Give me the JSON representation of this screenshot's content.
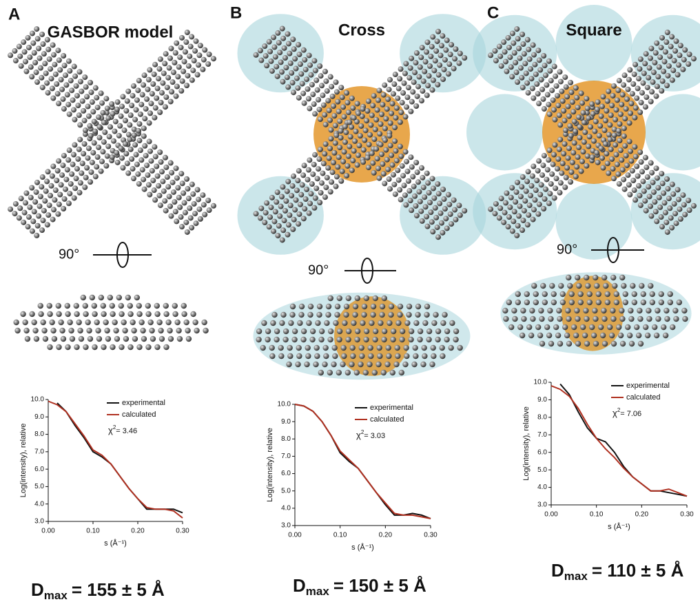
{
  "panels": [
    {
      "letter": "A",
      "title": "GASBOR model",
      "rotation": "90°",
      "dmax": {
        "symbol": "D",
        "subscript": "max",
        "text": "=   155 ± 5 Å"
      }
    },
    {
      "letter": "B",
      "title": "Cross",
      "rotation": "90°",
      "dmax": {
        "symbol": "D",
        "subscript": "max",
        "text": "= 150 ± 5 Å"
      }
    },
    {
      "letter": "C",
      "title": "Square",
      "rotation": "90°",
      "dmax": {
        "symbol": "D",
        "subscript": "max",
        "text": "= 110 ± 5 Å"
      }
    }
  ],
  "chart_data": [
    {
      "type": "line",
      "x_label": "s (Å⁻¹)",
      "y_label": "Log(intensity), relative",
      "x": [
        0,
        0.02,
        0.04,
        0.06,
        0.08,
        0.1,
        0.12,
        0.14,
        0.16,
        0.18,
        0.2,
        0.22,
        0.24,
        0.26,
        0.28,
        0.3
      ],
      "series": [
        {
          "name": "experimental",
          "color": "#111111",
          "values": [
            null,
            9.8,
            9.3,
            8.5,
            7.8,
            7.0,
            6.7,
            6.3,
            5.6,
            4.9,
            4.3,
            3.7,
            3.7,
            3.7,
            3.7,
            3.5
          ]
        },
        {
          "name": "calculated",
          "color": "#b03020",
          "values": [
            9.9,
            9.7,
            9.3,
            8.6,
            7.9,
            7.1,
            6.8,
            6.3,
            5.6,
            4.9,
            4.3,
            3.8,
            3.7,
            3.7,
            3.6,
            3.2
          ]
        }
      ],
      "annotation": {
        "symbol": "χ",
        "superscript": "2",
        "text": "= 3.46"
      },
      "legend": "upper right",
      "xlim": [
        0,
        0.3
      ],
      "ylim": [
        3,
        10
      ],
      "xticks": [
        {
          "value": 0,
          "label": "0.00"
        },
        {
          "value": 0.1,
          "label": "0.10"
        },
        {
          "value": 0.2,
          "label": "0.20"
        },
        {
          "value": 0.3,
          "label": "0.30"
        }
      ],
      "yticks": [
        {
          "value": 3,
          "label": "3.0"
        },
        {
          "value": 4,
          "label": "4.0"
        },
        {
          "value": 5,
          "label": "5.0"
        },
        {
          "value": 6,
          "label": "6.0"
        },
        {
          "value": 7,
          "label": "7.0"
        },
        {
          "value": 8,
          "label": "8.0"
        },
        {
          "value": 9,
          "label": "9.0"
        },
        {
          "value": 10,
          "label": "10.0"
        }
      ]
    },
    {
      "type": "line",
      "x_label": "s (Å⁻¹)",
      "y_label": "Log(intensity), relative",
      "x": [
        0,
        0.02,
        0.04,
        0.06,
        0.08,
        0.1,
        0.12,
        0.14,
        0.16,
        0.18,
        0.2,
        0.22,
        0.24,
        0.26,
        0.28,
        0.3
      ],
      "series": [
        {
          "name": "experimental",
          "color": "#111111",
          "values": [
            10.0,
            9.9,
            9.6,
            9.0,
            8.2,
            7.2,
            6.7,
            6.3,
            5.6,
            4.9,
            4.2,
            3.6,
            3.6,
            3.7,
            3.6,
            3.4
          ]
        },
        {
          "name": "calculated",
          "color": "#b03020",
          "values": [
            10.0,
            9.9,
            9.6,
            9.0,
            8.2,
            7.3,
            6.8,
            6.3,
            5.6,
            4.9,
            4.3,
            3.7,
            3.6,
            3.6,
            3.5,
            3.4
          ]
        }
      ],
      "annotation": {
        "symbol": "χ",
        "superscript": "2",
        "text": "= 3.03"
      },
      "legend": "upper right",
      "xlim": [
        0,
        0.3
      ],
      "ylim": [
        3,
        10
      ],
      "xticks": [
        {
          "value": 0,
          "label": "0.00"
        },
        {
          "value": 0.1,
          "label": "0.10"
        },
        {
          "value": 0.2,
          "label": "0.20"
        },
        {
          "value": 0.3,
          "label": "0.30"
        }
      ],
      "yticks": [
        {
          "value": 3,
          "label": "3.0"
        },
        {
          "value": 4,
          "label": "4.0"
        },
        {
          "value": 5,
          "label": "5.0"
        },
        {
          "value": 6,
          "label": "6.0"
        },
        {
          "value": 7,
          "label": "7.0"
        },
        {
          "value": 8,
          "label": "8.0"
        },
        {
          "value": 9,
          "label": "9.0"
        },
        {
          "value": 10,
          "label": "10.0"
        }
      ]
    },
    {
      "type": "line",
      "x_label": "s (Å⁻¹)",
      "y_label": "Log(intensity), relative",
      "x": [
        0,
        0.02,
        0.04,
        0.06,
        0.08,
        0.1,
        0.12,
        0.14,
        0.16,
        0.18,
        0.2,
        0.22,
        0.24,
        0.26,
        0.28,
        0.3
      ],
      "series": [
        {
          "name": "experimental",
          "color": "#111111",
          "values": [
            null,
            9.9,
            9.3,
            8.3,
            7.4,
            6.8,
            6.6,
            6.0,
            5.2,
            4.6,
            4.2,
            3.8,
            3.8,
            3.7,
            3.6,
            3.5
          ]
        },
        {
          "name": "calculated",
          "color": "#b03020",
          "values": [
            9.8,
            9.6,
            9.2,
            8.5,
            7.6,
            6.8,
            6.2,
            5.7,
            5.1,
            4.6,
            4.2,
            3.8,
            3.8,
            3.9,
            3.7,
            3.5
          ]
        }
      ],
      "annotation": {
        "symbol": "χ",
        "superscript": "2",
        "text": "= 7.06"
      },
      "legend": "upper right",
      "xlim": [
        0,
        0.3
      ],
      "ylim": [
        3,
        10
      ],
      "xticks": [
        {
          "value": 0,
          "label": "0.00"
        },
        {
          "value": 0.1,
          "label": "0.10"
        },
        {
          "value": 0.2,
          "label": "0.20"
        },
        {
          "value": 0.3,
          "label": "0.30"
        }
      ],
      "yticks": [
        {
          "value": 3,
          "label": "3.0"
        },
        {
          "value": 4,
          "label": "4.0"
        },
        {
          "value": 5,
          "label": "5.0"
        },
        {
          "value": 6,
          "label": "6.0"
        },
        {
          "value": 7,
          "label": "7.0"
        },
        {
          "value": 8,
          "label": "8.0"
        },
        {
          "value": 9,
          "label": "9.0"
        },
        {
          "value": 10,
          "label": "10.0"
        }
      ]
    }
  ]
}
